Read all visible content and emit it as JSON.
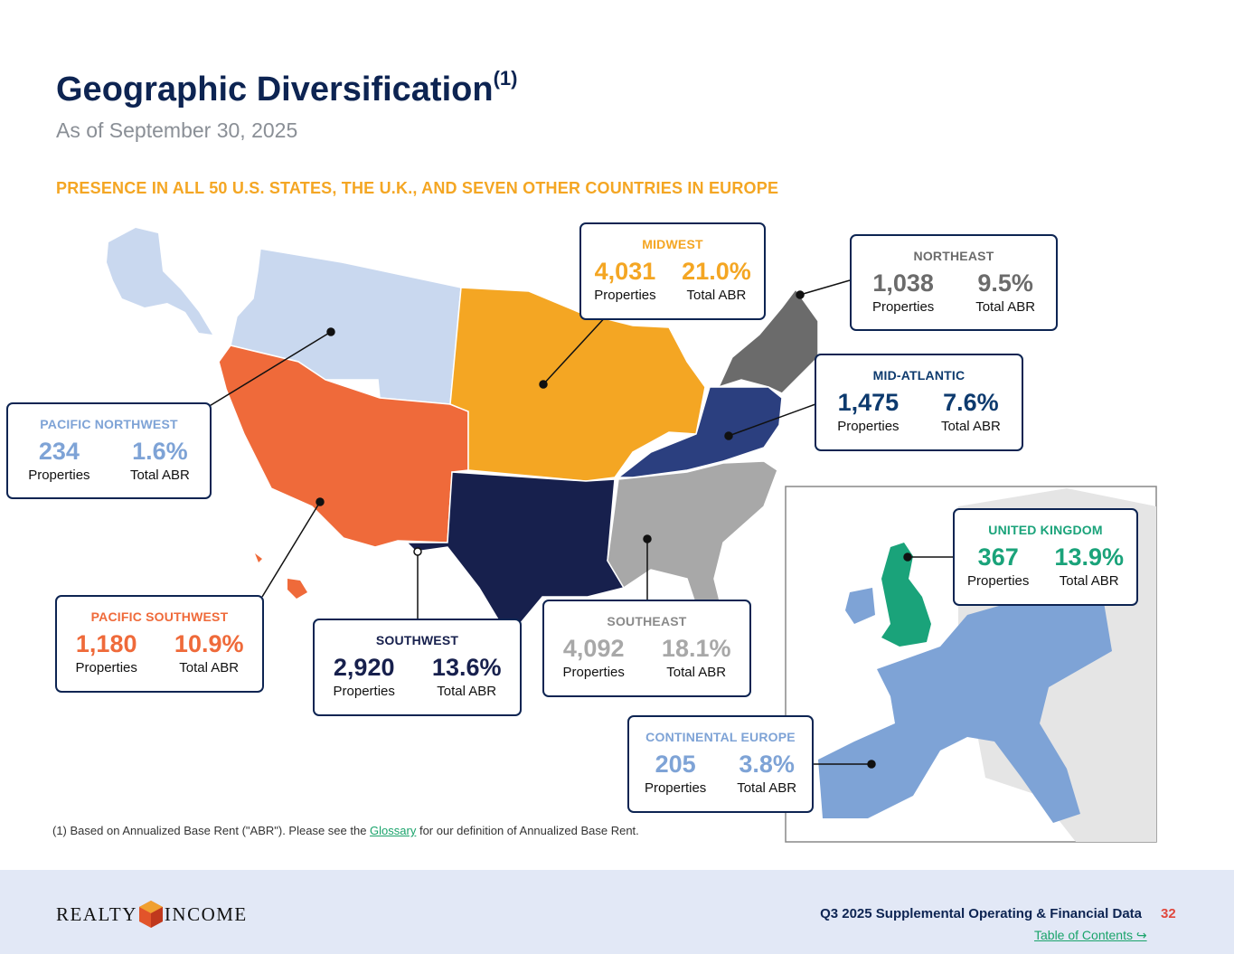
{
  "page": {
    "title": "Geographic Diversification",
    "title_sup": "(1)",
    "subtitle": "As of September 30, 2025",
    "headline": "PRESENCE IN ALL 50 U.S. STATES, THE U.K., AND SEVEN OTHER COUNTRIES IN EUROPE"
  },
  "regions": {
    "midwest": {
      "name": "MIDWEST",
      "properties": "4,031",
      "abr": "21.0%",
      "color": "#f4a623"
    },
    "northeast": {
      "name": "NORTHEAST",
      "properties": "1,038",
      "abr": "9.5%",
      "color": "#6b6b6b"
    },
    "mid_atlantic": {
      "name": "MID-ATLANTIC",
      "properties": "1,475",
      "abr": "7.6%",
      "color": "#0d3a6e"
    },
    "pacific_northwest": {
      "name": "PACIFIC NORTHWEST",
      "properties": "234",
      "abr": "1.6%",
      "color": "#7ea3d6"
    },
    "pacific_southwest": {
      "name": "PACIFIC SOUTHWEST",
      "properties": "1,180",
      "abr": "10.9%",
      "color": "#ef6a3a"
    },
    "southwest": {
      "name": "SOUTHWEST",
      "properties": "2,920",
      "abr": "13.6%",
      "color": "#17204d"
    },
    "southeast": {
      "name": "SOUTHEAST",
      "properties": "4,092",
      "abr": "18.1%",
      "color": "#a8a8a8"
    },
    "united_kingdom": {
      "name": "UNITED KINGDOM",
      "properties": "367",
      "abr": "13.9%",
      "color": "#1aa37a"
    },
    "continental_europe": {
      "name": "CONTINENTAL EUROPE",
      "properties": "205",
      "abr": "3.8%",
      "color": "#7ea3d6"
    }
  },
  "labels": {
    "properties": "Properties",
    "abr": "Total ABR"
  },
  "footnote": {
    "prefix": "(1)  Based on Annualized Base Rent (\"ABR\"). Please see the ",
    "link": "Glossary",
    "suffix": " for our definition of Annualized Base Rent."
  },
  "footer": {
    "logo_left": "REALTY",
    "logo_right": "INCOME",
    "report": "Q3 2025 Supplemental Operating & Financial Data",
    "page_number": "32",
    "toc": "Table of Contents ↪"
  }
}
